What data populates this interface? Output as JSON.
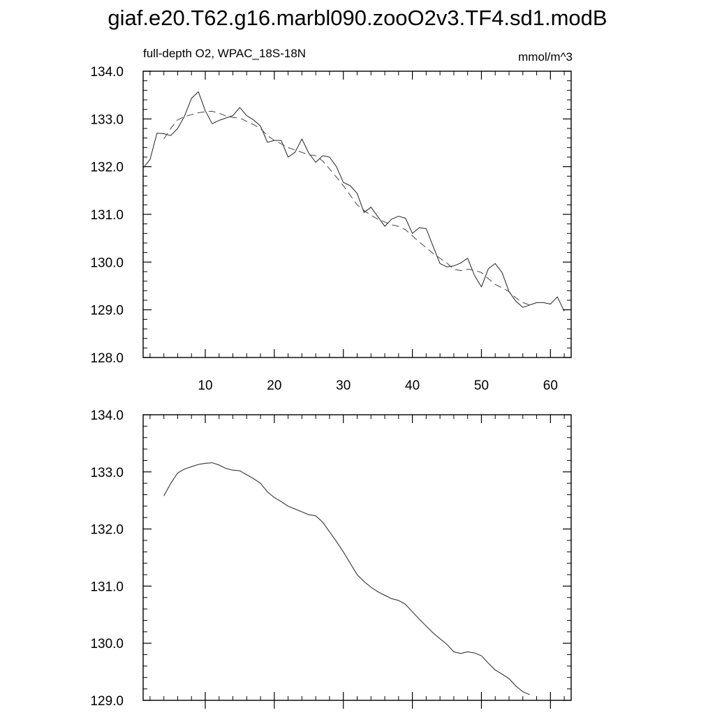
{
  "page": {
    "title": "giaf.e20.T62.g16.marbl090.zooO2v3.TF4.sd1.modB"
  },
  "chart_data": [
    {
      "type": "line",
      "subtitle_left": "full-depth O2, WPAC_18S-18N",
      "subtitle_right": "mmol/m^3",
      "xlim": [
        1,
        63
      ],
      "ylim": [
        128,
        134
      ],
      "xticks": [
        10,
        20,
        30,
        40,
        50,
        60
      ],
      "xtick_labels": [
        "10",
        "20",
        "30",
        "40",
        "50",
        "60"
      ],
      "yticks": [
        128,
        129,
        130,
        131,
        132,
        133,
        134
      ],
      "ytick_labels": [
        "128.0",
        "129.0",
        "130.0",
        "131.0",
        "132.0",
        "133.0",
        "134.0"
      ],
      "series": [
        {
          "style": "solid",
          "x": [
            1,
            2,
            3,
            4,
            5,
            6,
            7,
            8,
            9,
            10,
            11,
            12,
            13,
            14,
            15,
            16,
            17,
            18,
            19,
            20,
            21,
            22,
            23,
            24,
            25,
            26,
            27,
            28,
            29,
            30,
            31,
            32,
            33,
            34,
            35,
            36,
            37,
            38,
            39,
            40,
            41,
            42,
            43,
            44,
            45,
            46,
            47,
            48,
            49,
            50,
            51,
            52,
            53,
            54,
            55,
            56,
            57,
            58,
            59,
            60,
            61,
            62,
            63
          ],
          "y": [
            131.97,
            132.15,
            132.7,
            132.69,
            132.65,
            132.8,
            133.06,
            133.43,
            133.57,
            133.17,
            132.9,
            132.97,
            133.02,
            133.07,
            133.24,
            133.07,
            132.98,
            132.85,
            132.51,
            132.55,
            132.55,
            132.2,
            132.3,
            132.58,
            132.28,
            132.09,
            132.23,
            132.2,
            132.0,
            131.67,
            131.6,
            131.44,
            131.04,
            131.15,
            130.95,
            130.75,
            130.9,
            130.96,
            130.92,
            130.6,
            130.72,
            130.7,
            130.33,
            129.97,
            129.9,
            129.92,
            129.98,
            130.08,
            129.72,
            129.48,
            129.86,
            129.97,
            129.78,
            129.38,
            129.18,
            129.05,
            129.1,
            129.15,
            129.15,
            129.12,
            129.27,
            128.97,
            null
          ]
        },
        {
          "style": "dashed",
          "x": [
            4,
            5,
            6,
            7,
            8,
            9,
            10,
            11,
            12,
            13,
            14,
            15,
            16,
            17,
            18,
            19,
            20,
            21,
            22,
            23,
            24,
            25,
            26,
            27,
            28,
            29,
            30,
            31,
            32,
            33,
            34,
            35,
            36,
            37,
            38,
            39,
            40,
            41,
            42,
            43,
            44,
            45,
            46,
            47,
            48,
            49,
            50,
            51,
            52,
            53,
            54,
            55,
            56,
            57,
            58,
            59,
            60
          ],
          "y": [
            132.58,
            132.8,
            132.98,
            133.05,
            133.09,
            133.13,
            133.15,
            133.16,
            133.12,
            133.06,
            133.03,
            133.02,
            132.95,
            132.88,
            132.8,
            132.65,
            132.55,
            132.48,
            132.4,
            132.35,
            132.3,
            132.25,
            132.23,
            132.12,
            131.95,
            131.78,
            131.6,
            131.4,
            131.2,
            131.08,
            130.98,
            130.9,
            130.84,
            130.78,
            130.75,
            130.68,
            130.55,
            130.42,
            130.3,
            130.18,
            130.08,
            129.98,
            129.85,
            129.82,
            129.85,
            129.83,
            129.78,
            129.65,
            129.53,
            129.46,
            129.38,
            129.25,
            129.15,
            129.1,
            null,
            null,
            null
          ]
        }
      ]
    },
    {
      "type": "line",
      "xlim": [
        1,
        63
      ],
      "ylim": [
        129,
        134
      ],
      "xticks": [
        10,
        20,
        30,
        40,
        50,
        60
      ],
      "yticks": [
        129,
        130,
        131,
        132,
        133,
        134
      ],
      "ytick_labels": [
        "129.0",
        "130.0",
        "131.0",
        "132.0",
        "133.0",
        "134.0"
      ],
      "series": [
        {
          "style": "solid",
          "x": [
            4,
            5,
            6,
            7,
            8,
            9,
            10,
            11,
            12,
            13,
            14,
            15,
            16,
            17,
            18,
            19,
            20,
            21,
            22,
            23,
            24,
            25,
            26,
            27,
            28,
            29,
            30,
            31,
            32,
            33,
            34,
            35,
            36,
            37,
            38,
            39,
            40,
            41,
            42,
            43,
            44,
            45,
            46,
            47,
            48,
            49,
            50,
            51,
            52,
            53,
            54,
            55,
            56,
            57,
            58,
            59,
            60
          ],
          "y": [
            132.58,
            132.8,
            132.98,
            133.05,
            133.09,
            133.13,
            133.15,
            133.16,
            133.12,
            133.06,
            133.03,
            133.02,
            132.95,
            132.88,
            132.8,
            132.65,
            132.55,
            132.48,
            132.4,
            132.35,
            132.3,
            132.25,
            132.23,
            132.12,
            131.95,
            131.78,
            131.6,
            131.4,
            131.2,
            131.08,
            130.98,
            130.9,
            130.84,
            130.78,
            130.75,
            130.68,
            130.55,
            130.42,
            130.3,
            130.18,
            130.08,
            129.98,
            129.85,
            129.82,
            129.85,
            129.83,
            129.78,
            129.65,
            129.53,
            129.46,
            129.38,
            129.25,
            129.15,
            129.1,
            null,
            null,
            null
          ]
        }
      ]
    }
  ]
}
